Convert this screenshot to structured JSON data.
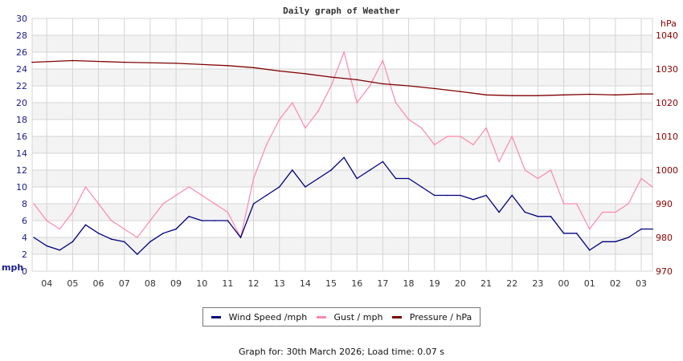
{
  "chart_data": {
    "type": "line",
    "title": "Daily graph of Weather",
    "ylabel_left": "mph",
    "ylabel_right": "hPa",
    "ylim_left": [
      0,
      30
    ],
    "ylim_right": [
      970,
      1045
    ],
    "yticks_left": [
      "0",
      "2",
      "4",
      "6",
      "8",
      "10",
      "12",
      "14",
      "16",
      "18",
      "20",
      "22",
      "24",
      "26",
      "28",
      "30"
    ],
    "yticks_right": [
      "970",
      "980",
      "990",
      "1000",
      "1010",
      "1020",
      "1030",
      "1040"
    ],
    "xticks": [
      "04",
      "05",
      "06",
      "07",
      "08",
      "09",
      "10",
      "11",
      "12",
      "13",
      "14",
      "15",
      "16",
      "17",
      "18",
      "19",
      "20",
      "21",
      "22",
      "23",
      "00",
      "01",
      "02",
      "03"
    ],
    "x_range": [
      "03:26",
      "03:26"
    ],
    "grid": true,
    "legend_placement": "bottom",
    "colors": {
      "wind": "#000080",
      "gust": "#ff88aa",
      "pressure": "#800000",
      "band": "#f3f3f3",
      "grid": "#d4d4d4"
    },
    "series": [
      {
        "name": "Wind Speed /mph",
        "axis": "left",
        "x": [
          "03:30",
          "04:00",
          "04:30",
          "05:00",
          "05:30",
          "06:00",
          "06:30",
          "07:00",
          "07:30",
          "08:00",
          "08:30",
          "09:00",
          "09:30",
          "10:00",
          "10:30",
          "11:00",
          "11:30",
          "12:00",
          "12:30",
          "13:00",
          "13:30",
          "14:00",
          "14:30",
          "15:00",
          "15:30",
          "16:00",
          "16:30",
          "17:00",
          "17:30",
          "18:00",
          "18:30",
          "19:00",
          "19:30",
          "20:00",
          "20:30",
          "21:00",
          "21:30",
          "22:00",
          "22:30",
          "23:00",
          "23:30",
          "00:00",
          "00:30",
          "01:00",
          "01:30",
          "02:00",
          "02:30",
          "03:00",
          "03:26"
        ],
        "values": [
          4,
          3,
          2.5,
          3.5,
          5.5,
          4.5,
          3.8,
          3.5,
          2,
          3.5,
          4.5,
          5,
          6.5,
          6,
          6,
          6,
          4,
          8,
          9,
          10,
          12,
          10,
          11,
          12,
          13.5,
          11,
          12,
          13,
          11,
          11,
          10,
          9,
          9,
          9,
          8.5,
          9,
          7,
          9,
          7,
          6.5,
          6.5,
          4.5,
          4.5,
          2.5,
          3.5,
          3.5,
          4,
          5,
          5
        ]
      },
      {
        "name": "Gust / mph",
        "axis": "left",
        "x": [
          "03:30",
          "04:00",
          "04:30",
          "05:00",
          "05:30",
          "06:00",
          "06:30",
          "07:00",
          "07:30",
          "08:00",
          "08:30",
          "09:00",
          "09:30",
          "10:00",
          "10:30",
          "11:00",
          "11:30",
          "12:00",
          "12:30",
          "13:00",
          "13:30",
          "14:00",
          "14:30",
          "15:00",
          "15:30",
          "16:00",
          "16:30",
          "17:00",
          "17:30",
          "18:00",
          "18:30",
          "19:00",
          "19:30",
          "20:00",
          "20:30",
          "21:00",
          "21:30",
          "22:00",
          "22:30",
          "23:00",
          "23:30",
          "00:00",
          "00:30",
          "01:00",
          "01:30",
          "02:00",
          "02:30",
          "03:00",
          "03:26"
        ],
        "values": [
          8,
          6,
          5,
          7,
          10,
          8,
          6,
          5,
          4,
          6,
          8,
          9,
          10,
          9,
          8,
          7,
          4,
          11,
          15,
          18,
          20,
          17,
          19,
          22,
          26,
          20,
          22,
          25,
          20,
          18,
          17,
          15,
          16,
          16,
          15,
          17,
          13,
          16,
          12,
          11,
          12,
          8,
          8,
          5,
          7,
          7,
          8,
          11,
          10
        ]
      },
      {
        "name": "Pressure / hPa",
        "axis": "right",
        "x": [
          "03:26",
          "05:00",
          "07:00",
          "09:00",
          "11:00",
          "12:00",
          "13:00",
          "14:00",
          "15:00",
          "16:00",
          "17:00",
          "18:00",
          "19:00",
          "20:00",
          "21:00",
          "22:00",
          "23:00",
          "00:00",
          "01:00",
          "02:00",
          "03:00",
          "03:26"
        ],
        "values": [
          1032,
          1032.5,
          1032,
          1031.7,
          1031,
          1030.4,
          1029.4,
          1028.6,
          1027.6,
          1026.8,
          1025.6,
          1025,
          1024.2,
          1023.3,
          1022.3,
          1022.1,
          1022.1,
          1022.3,
          1022.5,
          1022.3,
          1022.6,
          1022.6
        ]
      }
    ]
  },
  "legend": {
    "wind": "Wind Speed /mph",
    "gust": "Gust / mph",
    "pressure": "Pressure / hPa"
  },
  "footer": "Graph for: 30th March 2026; Load time: 0.07 s"
}
